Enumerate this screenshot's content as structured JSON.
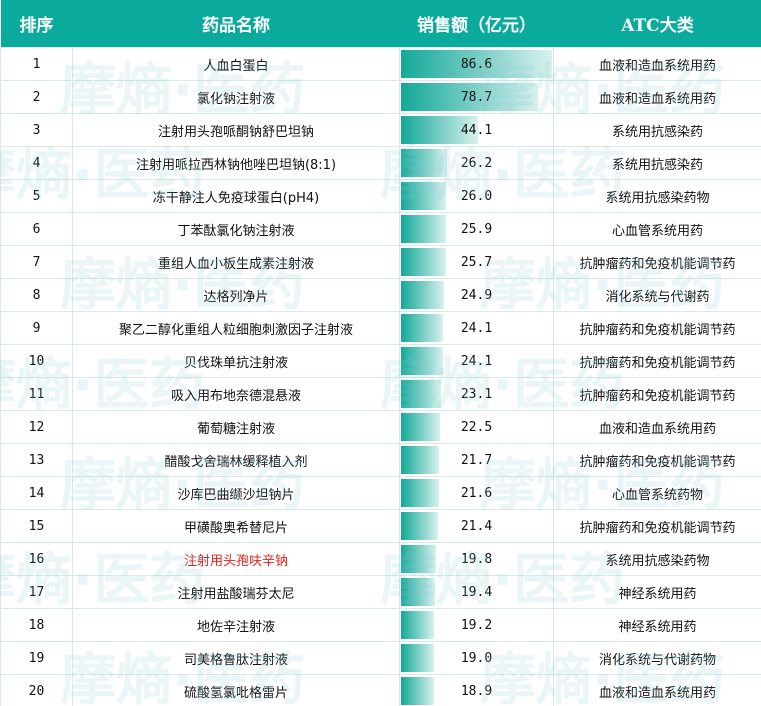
{
  "header": {
    "rank": "排序",
    "name": "药品名称",
    "sales": "销售额（亿元）",
    "atc": "ATC大类"
  },
  "watermark": "摩熵·医药",
  "bar_color": "#12a898",
  "highlight_color": "#e8201a",
  "rows": [
    {
      "rank": "1",
      "name": "人血白蛋白",
      "sales": "86.6",
      "atc": "血液和造血系统用药"
    },
    {
      "rank": "2",
      "name": "氯化钠注射液",
      "sales": "78.7",
      "atc": "血液和造血系统用药"
    },
    {
      "rank": "3",
      "name": "注射用头孢哌酮钠舒巴坦钠",
      "sales": "44.1",
      "atc": "系统用抗感染药"
    },
    {
      "rank": "4",
      "name": "注射用哌拉西林钠他唑巴坦钠(8:1)",
      "sales": "26.2",
      "atc": "系统用抗感染药"
    },
    {
      "rank": "5",
      "name": "冻干静注人免疫球蛋白(pH4)",
      "sales": "26.0",
      "atc": "系统用抗感染药物"
    },
    {
      "rank": "6",
      "name": "丁苯酞氯化钠注射液",
      "sales": "25.9",
      "atc": "心血管系统用药"
    },
    {
      "rank": "7",
      "name": "重组人血小板生成素注射液",
      "sales": "25.7",
      "atc": "抗肿瘤药和免疫机能调节药"
    },
    {
      "rank": "8",
      "name": "达格列净片",
      "sales": "24.9",
      "atc": "消化系统与代谢药"
    },
    {
      "rank": "9",
      "name": "聚乙二醇化重组人粒细胞刺激因子注射液",
      "sales": "24.1",
      "atc": "抗肿瘤药和免疫机能调节药"
    },
    {
      "rank": "10",
      "name": "贝伐珠单抗注射液",
      "sales": "24.1",
      "atc": "抗肿瘤药和免疫机能调节药"
    },
    {
      "rank": "11",
      "name": "吸入用布地奈德混悬液",
      "sales": "23.1",
      "atc": "抗肿瘤药和免疫机能调节药"
    },
    {
      "rank": "12",
      "name": "葡萄糖注射液",
      "sales": "22.5",
      "atc": "血液和造血系统用药"
    },
    {
      "rank": "13",
      "name": "醋酸戈舍瑞林缓释植入剂",
      "sales": "21.7",
      "atc": "抗肿瘤药和免疫机能调节药"
    },
    {
      "rank": "14",
      "name": "沙库巴曲缬沙坦钠片",
      "sales": "21.6",
      "atc": "心血管系统药物"
    },
    {
      "rank": "15",
      "name": "甲磺酸奥希替尼片",
      "sales": "21.4",
      "atc": "抗肿瘤药和免疫机能调节药"
    },
    {
      "rank": "16",
      "name": "注射用头孢呋辛钠",
      "sales": "19.8",
      "atc": "系统用抗感染药物",
      "highlight": true
    },
    {
      "rank": "17",
      "name": "注射用盐酸瑞芬太尼",
      "sales": "19.4",
      "atc": "神经系统用药"
    },
    {
      "rank": "18",
      "name": "地佐辛注射液",
      "sales": "19.2",
      "atc": "神经系统用药"
    },
    {
      "rank": "19",
      "name": "司美格鲁肽注射液",
      "sales": "19.0",
      "atc": "消化系统与代谢药物"
    },
    {
      "rank": "20",
      "name": "硫酸氢氯吡格雷片",
      "sales": "18.9",
      "atc": "血液和造血系统用药"
    }
  ]
}
